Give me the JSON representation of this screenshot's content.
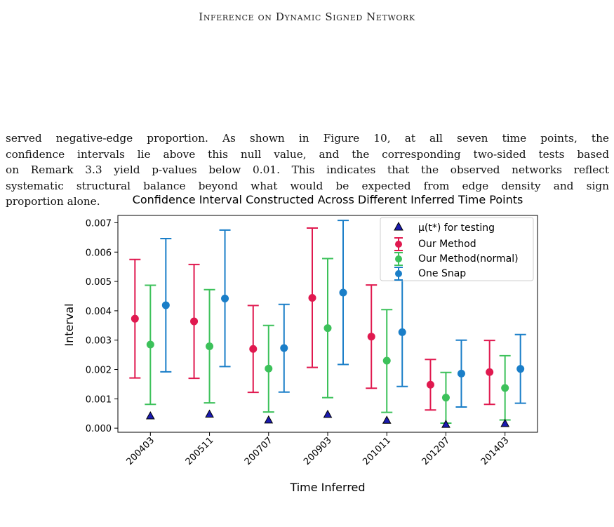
{
  "header": {
    "running_title": "Inference on Dynamic Signed Network"
  },
  "body": {
    "lines": [
      "served negative-edge proportion.  As shown in Figure 10, at all seven time points, the",
      "confidence intervals lie above this null value, and the corresponding two-sided tests based",
      "on Remark 3.3 yield p-values below 0.01. This indicates that the observed networks reflect",
      "systematic structural balance beyond what would be expected from edge density and sign",
      "proportion alone."
    ]
  },
  "chart_data": {
    "type": "errorbar",
    "title": "Confidence Interval Constructed Across Different Inferred Time Points",
    "xlabel": "Time Inferred",
    "ylabel": "Interval",
    "categories": [
      "200403",
      "200511",
      "200707",
      "200903",
      "201011",
      "201207",
      "201403"
    ],
    "ylim": [
      -0.00014,
      0.00725
    ],
    "yticks": [
      0.0,
      0.001,
      0.002,
      0.003,
      0.004,
      0.005,
      0.006,
      0.007
    ],
    "ytick_labels": [
      "0.000",
      "0.001",
      "0.002",
      "0.003",
      "0.004",
      "0.005",
      "0.006",
      "0.007"
    ],
    "grid": false,
    "legend_position": "top-right",
    "null_value": {
      "name": "μ(t*) for testing",
      "color": "#1a1aaf",
      "marker": "triangle",
      "values": [
        0.00041,
        0.00047,
        0.00027,
        0.00046,
        0.00026,
        0.00012,
        0.00015
      ]
    },
    "series": [
      {
        "name": "Our Method",
        "color": "#e0194f",
        "center": [
          0.00373,
          0.00364,
          0.0027,
          0.00444,
          0.00312,
          0.00148,
          0.00191
        ],
        "lower": [
          0.00171,
          0.0017,
          0.00122,
          0.00207,
          0.00136,
          0.00062,
          0.00081
        ],
        "upper": [
          0.00575,
          0.00558,
          0.00418,
          0.00682,
          0.00488,
          0.00234,
          0.00299
        ]
      },
      {
        "name": "Our Method(normal)",
        "color": "#3cc15a",
        "center": [
          0.00285,
          0.00279,
          0.00203,
          0.00341,
          0.0023,
          0.00104,
          0.00137
        ],
        "lower": [
          0.00081,
          0.00086,
          0.00055,
          0.00104,
          0.00054,
          0.00017,
          0.00028
        ],
        "upper": [
          0.00487,
          0.00472,
          0.0035,
          0.00578,
          0.00404,
          0.0019,
          0.00247
        ]
      },
      {
        "name": "One Snap",
        "color": "#1a7ec8",
        "center": [
          0.00419,
          0.00442,
          0.00273,
          0.00462,
          0.00327,
          0.00186,
          0.00202
        ],
        "lower": [
          0.00192,
          0.0021,
          0.00123,
          0.00217,
          0.00142,
          0.00072,
          0.00085
        ],
        "upper": [
          0.00646,
          0.00675,
          0.00422,
          0.00708,
          0.00512,
          0.003,
          0.00319
        ]
      }
    ]
  }
}
